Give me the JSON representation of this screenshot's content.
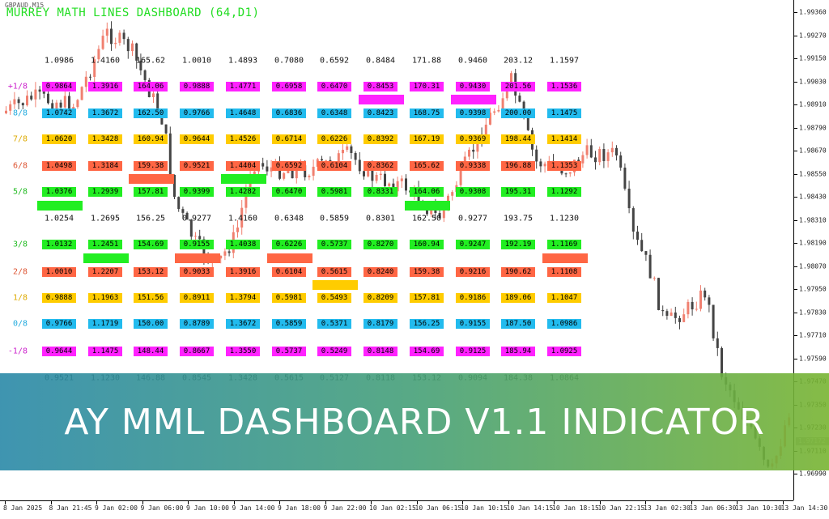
{
  "window": {
    "symbol": "GBPAUD,M15"
  },
  "dashboard": {
    "title": "MURREY MATH LINES DASHBOARD (64,D1)",
    "top_values": [
      "1.0986",
      "1.4160",
      "165.62",
      "1.0010",
      "1.4893",
      "0.7080",
      "0.6592",
      "0.8484",
      "171.88",
      "0.9460",
      "203.12",
      "1.1597"
    ],
    "mid_values": [
      "1.0254",
      "1.2695",
      "156.25",
      "0.9277",
      "1.4160",
      "0.6348",
      "0.5859",
      "0.8301",
      "162.50",
      "0.9277",
      "193.75",
      "1.1230"
    ],
    "bottom_values": [
      "0.9521",
      "1.1230",
      "146.88",
      "0.8545",
      "1.3428",
      "0.5615",
      "0.5127",
      "0.8118",
      "153.12",
      "0.9094",
      "184.38",
      "1.0864"
    ],
    "rows": [
      {
        "label": "+1/8",
        "label_color": "#cc22cc",
        "bg": "#ff22ff",
        "values": [
          "0.9864",
          "1.3916",
          "164.06",
          "0.9888",
          "1.4771",
          "0.6958",
          "0.6470",
          "0.8453",
          "170.31",
          "0.9430",
          "201.56",
          "1.1536"
        ]
      },
      {
        "label": "8/8",
        "label_color": "#22aadd",
        "bg": "#22bbee",
        "values": [
          "1.0742",
          "1.3672",
          "162.50",
          "0.9766",
          "1.4648",
          "0.6836",
          "0.6348",
          "0.8423",
          "168.75",
          "0.9398",
          "200.00",
          "1.1475"
        ]
      },
      {
        "label": "7/8",
        "label_color": "#ddaa00",
        "bg": "#ffcc00",
        "values": [
          "1.0620",
          "1.3428",
          "160.94",
          "0.9644",
          "1.4526",
          "0.6714",
          "0.6226",
          "0.8392",
          "167.19",
          "0.9369",
          "198.44",
          "1.1414"
        ]
      },
      {
        "label": "6/8",
        "label_color": "#dd5533",
        "bg": "#ff6644",
        "values": [
          "1.0498",
          "1.3184",
          "159.38",
          "0.9521",
          "1.4404",
          "0.6592",
          "0.6104",
          "0.8362",
          "165.62",
          "0.9338",
          "196.88",
          "1.1353"
        ]
      },
      {
        "label": "5/8",
        "label_color": "#22bb22",
        "bg": "#22ee22",
        "values": [
          "1.0376",
          "1.2939",
          "157.81",
          "0.9399",
          "1.4282",
          "0.6470",
          "0.5981",
          "0.8331",
          "164.06",
          "0.9308",
          "195.31",
          "1.1292"
        ]
      },
      {
        "label": "3/8",
        "label_color": "#22bb22",
        "bg": "#22ee22",
        "values": [
          "1.0132",
          "1.2451",
          "154.69",
          "0.9155",
          "1.4038",
          "0.6226",
          "0.5737",
          "0.8270",
          "160.94",
          "0.9247",
          "192.19",
          "1.1169"
        ]
      },
      {
        "label": "2/8",
        "label_color": "#dd5533",
        "bg": "#ff6644",
        "values": [
          "1.0010",
          "1.2207",
          "153.12",
          "0.9033",
          "1.3916",
          "0.6104",
          "0.5615",
          "0.8240",
          "159.38",
          "0.9216",
          "190.62",
          "1.1108"
        ]
      },
      {
        "label": "1/8",
        "label_color": "#ddaa00",
        "bg": "#ffcc00",
        "values": [
          "0.9888",
          "1.1963",
          "151.56",
          "0.8911",
          "1.3794",
          "0.5981",
          "0.5493",
          "0.8209",
          "157.81",
          "0.9186",
          "189.06",
          "1.1047"
        ]
      },
      {
        "label": "0/8",
        "label_color": "#22aadd",
        "bg": "#22bbee",
        "values": [
          "0.9766",
          "1.1719",
          "150.00",
          "0.8789",
          "1.3672",
          "0.5859",
          "0.5371",
          "0.8179",
          "156.25",
          "0.9155",
          "187.50",
          "1.0986"
        ]
      },
      {
        "label": "-1/8",
        "label_color": "#cc22cc",
        "bg": "#ff22ff",
        "values": [
          "0.9644",
          "1.1475",
          "148.44",
          "0.8667",
          "1.3550",
          "0.5737",
          "0.5249",
          "0.8148",
          "154.69",
          "0.9125",
          "185.94",
          "1.0925"
        ]
      }
    ],
    "markers": [
      {
        "col": 0,
        "row": "5/8-mid",
        "color": "#22ee22"
      },
      {
        "col": 1,
        "row": "3/8",
        "color": "#22ee22"
      },
      {
        "col": 2,
        "row": "6/8-mid",
        "color": "#ff6644"
      },
      {
        "col": 3,
        "row": "3/8",
        "color": "#ff6644"
      },
      {
        "col": 4,
        "row": "6/8-mid",
        "color": "#22ee22"
      },
      {
        "col": 5,
        "row": "3/8",
        "color": "#ff6644"
      },
      {
        "col": 6,
        "row": "2/8-mid",
        "color": "#ffcc00"
      },
      {
        "col": 7,
        "row": "+1/8-mid",
        "color": "#ff22ff"
      },
      {
        "col": 8,
        "row": "5/8-mid",
        "color": "#22ee22"
      },
      {
        "col": 9,
        "row": "+1/8-mid",
        "color": "#ff22ff"
      },
      {
        "col": 11,
        "row": "3/8",
        "color": "#ff6644"
      }
    ]
  },
  "price_axis": {
    "labels": [
      "1.99360",
      "1.99270",
      "1.99150",
      "1.99030",
      "1.98910",
      "1.98790",
      "1.98670",
      "1.98550",
      "1.98430",
      "1.98310",
      "1.98190",
      "1.98070",
      "1.97950",
      "1.97830",
      "1.97710",
      "1.97590",
      "1.97470",
      "1.97350",
      "1.97230",
      "1.97110",
      "1.96990"
    ],
    "current_price": "1.97172"
  },
  "time_axis": {
    "labels": [
      "8 Jan 2025",
      "8 Jan 21:45",
      "9 Jan 02:00",
      "9 Jan 06:00",
      "9 Jan 10:00",
      "9 Jan 14:00",
      "9 Jan 18:00",
      "9 Jan 22:00",
      "10 Jan 02:15",
      "10 Jan 06:15",
      "10 Jan 10:15",
      "10 Jan 14:15",
      "10 Jan 18:15",
      "10 Jan 22:15",
      "13 Jan 02:30",
      "13 Jan 06:30",
      "13 Jan 10:30",
      "13 Jan 14:30"
    ]
  },
  "candle_colors": {
    "bull": "#f08070",
    "bear": "#444444"
  },
  "banner": {
    "text": "AY MML DASHBOARD V1.1 INDICATOR"
  }
}
